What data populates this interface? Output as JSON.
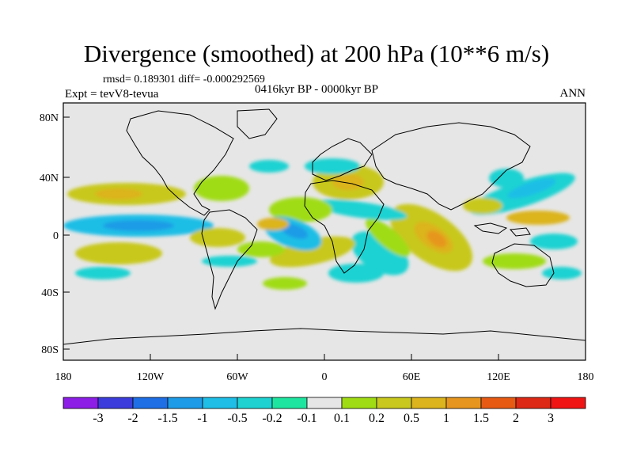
{
  "title": "Divergence (smoothed) at 200 hPa (10**6 m/s)",
  "stats": "rmsd= 0.189301 diff= -0.000292569",
  "experiment": "Expt = tevV8-tevua",
  "period": "0416kyr BP - 0000kyr BP",
  "season": "ANN",
  "lat_ticks": [
    "80N",
    "40N",
    "0",
    "40S",
    "80S"
  ],
  "lon_ticks": [
    "180",
    "120W",
    "60W",
    "0",
    "60E",
    "120E",
    "180"
  ],
  "colorbar": {
    "labels": [
      "-3",
      "-2",
      "-1.5",
      "-1",
      "-0.5",
      "-0.2",
      "-0.1",
      "0.1",
      "0.2",
      "0.5",
      "1",
      "1.5",
      "2",
      "3"
    ],
    "colors": [
      "#8c1ee6",
      "#3c3cdc",
      "#1e6ee6",
      "#1e9be6",
      "#1ebee6",
      "#1ed2d2",
      "#1ee6a0",
      "#e6e6e6",
      "#a0dc14",
      "#c8c81e",
      "#dcb41e",
      "#e6961e",
      "#e65a14",
      "#dc2814",
      "#f01414"
    ]
  },
  "colors": {
    "land_background": "#e6e6e6",
    "coastline": "#000000",
    "frame": "#000000"
  }
}
